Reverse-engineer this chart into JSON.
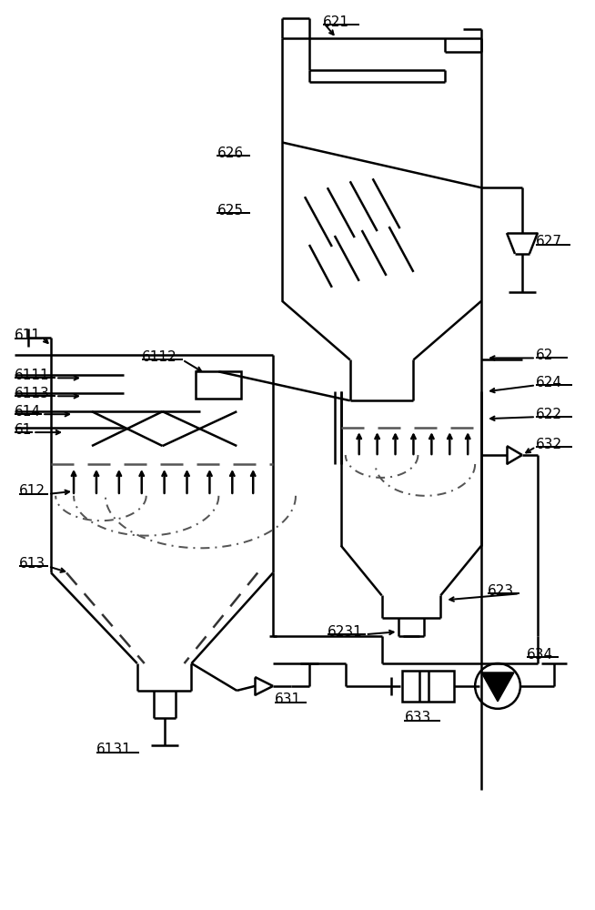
{
  "fig_width": 6.54,
  "fig_height": 10.0,
  "bg_color": "#ffffff",
  "line_color": "#000000",
  "lw": 1.8
}
